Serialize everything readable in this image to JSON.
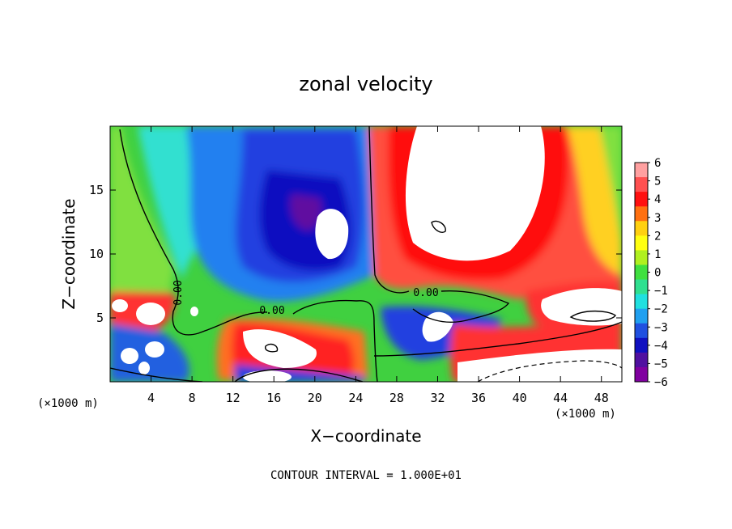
{
  "chart_data": {
    "type": "heatmap",
    "title": "zonal velocity",
    "xlabel": "X−coordinate",
    "ylabel": "Z−coordinate",
    "x_unit": "(×1000 m)",
    "y_unit": "(×1000 m)",
    "xlim": [
      0,
      50
    ],
    "ylim": [
      0,
      20
    ],
    "x_ticks": [
      4,
      8,
      12,
      16,
      20,
      24,
      28,
      32,
      36,
      40,
      44,
      48
    ],
    "y_ticks": [
      5,
      10,
      15
    ],
    "x_tick_labels": [
      "4",
      "8",
      "12",
      "16",
      "20",
      "24",
      "28",
      "32",
      "36",
      "40",
      "44",
      "48"
    ],
    "y_tick_labels": [
      "5",
      "10",
      "15"
    ],
    "colorbar": {
      "range": [
        -6,
        6
      ],
      "ticks": [
        6,
        5,
        4,
        3,
        2,
        1,
        0,
        -1,
        -2,
        -3,
        -4,
        -5,
        -6
      ],
      "tick_labels": [
        "6",
        "5",
        "4",
        "3",
        "2",
        "1",
        "0",
        "−1",
        "−2",
        "−3",
        "−4",
        "−5",
        "−6"
      ],
      "colors": [
        "#ffa0a0",
        "#ff5050",
        "#ff1010",
        "#ff7010",
        "#ffd010",
        "#ffff10",
        "#b0f020",
        "#40e040",
        "#30e090",
        "#20e0e0",
        "#20a0f0",
        "#2050e0",
        "#1010c0",
        "#5010a0",
        "#8000a0"
      ]
    },
    "contour_labels": [
      "0.00",
      "0.00",
      "0.00"
    ],
    "contour_interval_text": "CONTOUR INTERVAL = 1.000E+01",
    "grid": false
  }
}
